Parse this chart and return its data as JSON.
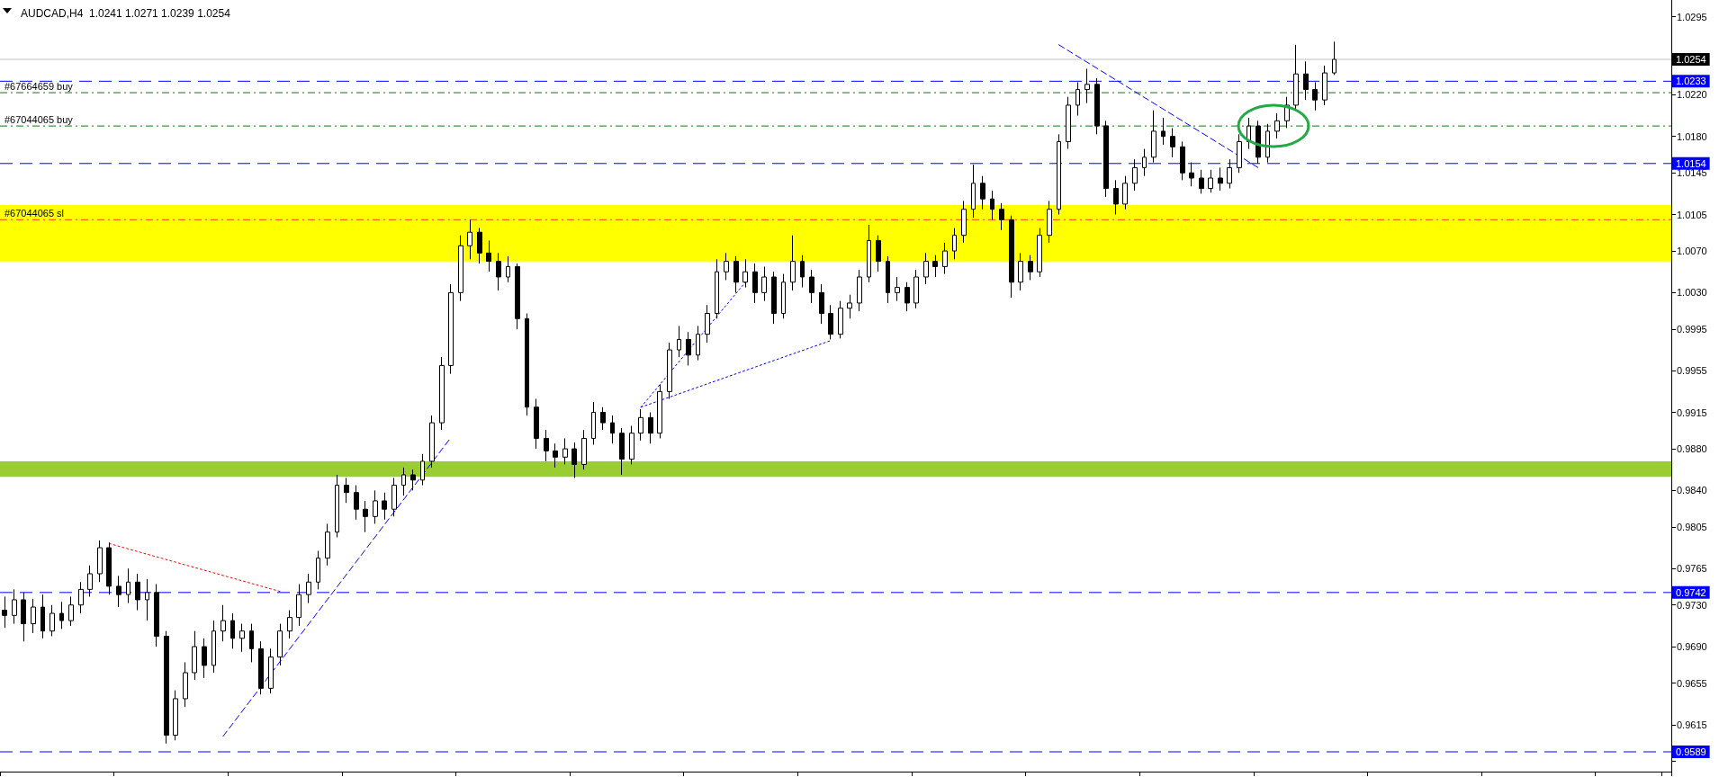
{
  "chart_data": {
    "type": "candlestick",
    "title": "AUDCAD,H4  1.0241 1.0271 1.0239 1.0254",
    "color": "#000000",
    "categories": [
      null,
      null,
      null,
      null,
      null,
      null,
      null,
      null,
      null,
      null,
      null,
      null,
      null,
      null,
      null,
      null,
      null,
      null,
      null,
      null,
      null,
      null,
      null,
      null,
      null,
      null,
      null,
      null,
      null,
      null,
      null,
      null,
      null,
      null,
      null,
      null,
      null,
      null,
      null,
      null,
      null,
      null,
      null,
      null,
      null,
      null,
      null,
      null,
      null,
      null,
      null,
      null,
      null,
      null,
      null,
      null,
      null,
      null,
      null,
      null,
      null,
      null,
      null,
      null,
      null,
      null,
      null,
      null,
      null,
      null,
      null,
      null,
      null,
      null,
      null,
      null,
      null,
      null,
      null,
      null,
      null,
      null,
      null,
      null,
      null,
      null,
      null,
      null,
      null,
      null,
      null,
      null,
      null,
      null,
      null,
      null,
      null,
      null,
      null,
      null,
      null,
      null,
      null,
      null,
      null,
      null,
      null,
      null,
      null,
      null,
      null,
      null,
      null,
      null,
      null,
      null,
      null,
      null,
      null,
      null,
      null,
      null,
      null,
      null,
      null,
      null,
      null,
      null,
      null,
      null,
      null,
      null,
      null,
      null,
      null,
      null,
      null,
      null,
      null,
      null,
      null,
      null,
      null,
      null,
      null,
      null,
      null,
      null,
      null,
      null,
      null,
      null,
      null,
      null,
      null,
      null,
      null,
      null,
      null,
      null,
      null,
      null,
      null,
      null,
      null,
      null,
      null,
      null,
      null,
      null,
      null,
      null,
      null,
      null,
      null,
      null
    ],
    "ohlc": [
      [
        0.9725,
        0.9738,
        0.9708,
        0.972
      ],
      [
        0.972,
        0.9745,
        0.9712,
        0.9735
      ],
      [
        0.9735,
        0.9742,
        0.9695,
        0.9712
      ],
      [
        0.9712,
        0.9736,
        0.9703,
        0.9728
      ],
      [
        0.9728,
        0.974,
        0.9698,
        0.9705
      ],
      [
        0.9705,
        0.973,
        0.97,
        0.9722
      ],
      [
        0.9722,
        0.9733,
        0.9707,
        0.9715
      ],
      [
        0.9715,
        0.9738,
        0.971,
        0.973
      ],
      [
        0.973,
        0.9752,
        0.9722,
        0.9745
      ],
      [
        0.9745,
        0.9768,
        0.9738,
        0.976
      ],
      [
        0.976,
        0.9792,
        0.9752,
        0.9785
      ],
      [
        0.9785,
        0.979,
        0.974,
        0.9748
      ],
      [
        0.9748,
        0.9758,
        0.9728,
        0.974
      ],
      [
        0.974,
        0.9765,
        0.9732,
        0.9752
      ],
      [
        0.9752,
        0.976,
        0.9725,
        0.9735
      ],
      [
        0.9735,
        0.9755,
        0.9715,
        0.9742
      ],
      [
        0.9742,
        0.975,
        0.969,
        0.97
      ],
      [
        0.97,
        0.9705,
        0.9597,
        0.9605
      ],
      [
        0.9605,
        0.9648,
        0.96,
        0.964
      ],
      [
        0.964,
        0.9675,
        0.9632,
        0.9665
      ],
      [
        0.9665,
        0.9705,
        0.9658,
        0.969
      ],
      [
        0.969,
        0.9698,
        0.966,
        0.9672
      ],
      [
        0.9672,
        0.9715,
        0.9665,
        0.9705
      ],
      [
        0.9705,
        0.973,
        0.9695,
        0.9715
      ],
      [
        0.9715,
        0.9722,
        0.9688,
        0.9698
      ],
      [
        0.9698,
        0.9712,
        0.9685,
        0.9705
      ],
      [
        0.9705,
        0.9712,
        0.9675,
        0.9688
      ],
      [
        0.9688,
        0.9695,
        0.9644,
        0.965
      ],
      [
        0.965,
        0.9688,
        0.9645,
        0.968
      ],
      [
        0.968,
        0.9712,
        0.9672,
        0.9705
      ],
      [
        0.9705,
        0.9725,
        0.9698,
        0.9718
      ],
      [
        0.9718,
        0.975,
        0.971,
        0.974
      ],
      [
        0.974,
        0.976,
        0.9732,
        0.9752
      ],
      [
        0.9752,
        0.9782,
        0.9745,
        0.9775
      ],
      [
        0.9775,
        0.9808,
        0.9768,
        0.98
      ],
      [
        0.98,
        0.9855,
        0.9795,
        0.9845
      ],
      [
        0.9845,
        0.9852,
        0.9828,
        0.9838
      ],
      [
        0.9838,
        0.9845,
        0.9812,
        0.9822
      ],
      [
        0.9822,
        0.983,
        0.98,
        0.9815
      ],
      [
        0.9815,
        0.984,
        0.9808,
        0.983
      ],
      [
        0.983,
        0.9838,
        0.9812,
        0.9822
      ],
      [
        0.9822,
        0.9852,
        0.9815,
        0.9845
      ],
      [
        0.9845,
        0.9862,
        0.9835,
        0.9855
      ],
      [
        0.9855,
        0.986,
        0.984,
        0.985
      ],
      [
        0.985,
        0.9875,
        0.9845,
        0.9868
      ],
      [
        0.9868,
        0.9912,
        0.9862,
        0.9905
      ],
      [
        0.9905,
        0.9968,
        0.9898,
        0.996
      ],
      [
        0.996,
        1.0038,
        0.9952,
        1.003
      ],
      [
        1.003,
        1.0085,
        1.0022,
        1.0075
      ],
      [
        1.0075,
        1.01,
        1.0062,
        1.0088
      ],
      [
        1.0088,
        1.0092,
        1.0058,
        1.0068
      ],
      [
        1.0068,
        1.008,
        1.005,
        1.006
      ],
      [
        1.006,
        1.0068,
        1.0032,
        1.0045
      ],
      [
        1.0045,
        1.0065,
        1.004,
        1.0055
      ],
      [
        1.0055,
        1.0058,
        0.9995,
        1.0005
      ],
      [
        1.0005,
        1.001,
        0.9912,
        0.992
      ],
      [
        0.992,
        0.9928,
        0.988,
        0.989
      ],
      [
        0.989,
        0.9898,
        0.9868,
        0.9878
      ],
      [
        0.9878,
        0.9885,
        0.9862,
        0.9872
      ],
      [
        0.9872,
        0.989,
        0.9865,
        0.988
      ],
      [
        0.988,
        0.9886,
        0.9852,
        0.9865
      ],
      [
        0.9865,
        0.9898,
        0.986,
        0.989
      ],
      [
        0.989,
        0.9925,
        0.9884,
        0.9915
      ],
      [
        0.9915,
        0.992,
        0.9898,
        0.9905
      ],
      [
        0.9905,
        0.9912,
        0.9885,
        0.9895
      ],
      [
        0.9895,
        0.99,
        0.9855,
        0.987
      ],
      [
        0.987,
        0.9902,
        0.9865,
        0.9895
      ],
      [
        0.9895,
        0.9918,
        0.9888,
        0.991
      ],
      [
        0.991,
        0.9915,
        0.9885,
        0.9895
      ],
      [
        0.9895,
        0.9942,
        0.989,
        0.9935
      ],
      [
        0.9935,
        0.9982,
        0.9928,
        0.9975
      ],
      [
        0.9975,
        0.9998,
        0.9968,
        0.9985
      ],
      [
        0.9985,
        0.9992,
        0.996,
        0.997
      ],
      [
        0.997,
        0.9998,
        0.9965,
        0.999
      ],
      [
        0.999,
        1.0018,
        0.9982,
        1.001
      ],
      [
        1.001,
        1.0062,
        1.0005,
        1.005
      ],
      [
        1.005,
        1.0068,
        1.0042,
        1.006
      ],
      [
        1.006,
        1.0065,
        1.003,
        1.004
      ],
      [
        1.004,
        1.0062,
        1.0035,
        1.005
      ],
      [
        1.005,
        1.0058,
        1.002,
        1.003
      ],
      [
        1.003,
        1.0055,
        1.0022,
        1.0045
      ],
      [
        1.0045,
        1.005,
        1.0,
        1.001
      ],
      [
        1.001,
        1.0048,
        1.0005,
        1.004
      ],
      [
        1.004,
        1.0085,
        1.0032,
        1.006
      ],
      [
        1.006,
        1.0066,
        1.0035,
        1.0045
      ],
      [
        1.0045,
        1.0052,
        1.002,
        1.003
      ],
      [
        1.003,
        1.0038,
        1.0,
        1.001
      ],
      [
        1.001,
        1.0018,
        0.9985,
        0.999
      ],
      [
        0.999,
        1.0022,
        0.9986,
        1.0015
      ],
      [
        1.0015,
        1.0028,
        1.0005,
        1.002
      ],
      [
        1.002,
        1.0052,
        1.0012,
        1.0045
      ],
      [
        1.0045,
        1.0095,
        1.004,
        1.008
      ],
      [
        1.008,
        1.0085,
        1.005,
        1.006
      ],
      [
        1.006,
        1.0065,
        1.002,
        1.003
      ],
      [
        1.003,
        1.0045,
        1.0022,
        1.0035
      ],
      [
        1.0035,
        1.004,
        1.0012,
        1.002
      ],
      [
        1.002,
        1.0052,
        1.0015,
        1.0045
      ],
      [
        1.0045,
        1.0068,
        1.0038,
        1.006
      ],
      [
        1.006,
        1.0066,
        1.0045,
        1.0055
      ],
      [
        1.0055,
        1.0078,
        1.0048,
        1.007
      ],
      [
        1.007,
        1.0092,
        1.0062,
        1.0085
      ],
      [
        1.0085,
        1.0118,
        1.0078,
        1.011
      ],
      [
        1.011,
        1.0153,
        1.0102,
        1.0135
      ],
      [
        1.0135,
        1.0142,
        1.011,
        1.012
      ],
      [
        1.012,
        1.0128,
        1.01,
        1.011
      ],
      [
        1.011,
        1.0116,
        1.009,
        1.01
      ],
      [
        1.01,
        1.0104,
        1.0025,
        1.004
      ],
      [
        1.004,
        1.0068,
        1.0032,
        1.006
      ],
      [
        1.006,
        1.0066,
        1.0042,
        1.005
      ],
      [
        1.005,
        1.0092,
        1.0045,
        1.0085
      ],
      [
        1.0085,
        1.0118,
        1.0078,
        1.011
      ],
      [
        1.011,
        1.0182,
        1.0105,
        1.0175
      ],
      [
        1.0175,
        1.0218,
        1.0168,
        1.021
      ],
      [
        1.021,
        1.0232,
        1.02,
        1.0225
      ],
      [
        1.0225,
        1.0245,
        1.0212,
        1.023
      ],
      [
        1.023,
        1.0236,
        1.0182,
        1.019
      ],
      [
        1.019,
        1.0195,
        1.0122,
        1.013
      ],
      [
        1.013,
        1.0138,
        1.0105,
        1.0115
      ],
      [
        1.0115,
        1.0142,
        1.011,
        1.0135
      ],
      [
        1.0135,
        1.0158,
        1.0128,
        1.015
      ],
      [
        1.015,
        1.0168,
        1.0142,
        1.016
      ],
      [
        1.016,
        1.0205,
        1.0155,
        1.0185
      ],
      [
        1.0185,
        1.0198,
        1.0172,
        1.018
      ],
      [
        1.018,
        1.0188,
        1.016,
        1.017
      ],
      [
        1.017,
        1.0175,
        1.0138,
        1.0145
      ],
      [
        1.0145,
        1.0155,
        1.0132,
        1.014
      ],
      [
        1.014,
        1.0148,
        1.0125,
        1.013
      ],
      [
        1.013,
        1.0148,
        1.0126,
        1.014
      ],
      [
        1.014,
        1.015,
        1.0128,
        1.0135
      ],
      [
        1.0135,
        1.0158,
        1.013,
        1.015
      ],
      [
        1.015,
        1.0182,
        1.0145,
        1.0175
      ],
      [
        1.0175,
        1.0198,
        1.0168,
        1.019
      ],
      [
        1.019,
        1.0195,
        1.0154,
        1.016
      ],
      [
        1.016,
        1.0192,
        1.0155,
        1.0185
      ],
      [
        1.0185,
        1.0202,
        1.0178,
        1.0195
      ],
      [
        1.0195,
        1.0218,
        1.0188,
        1.021
      ],
      [
        1.021,
        1.0268,
        1.0205,
        1.024
      ],
      [
        1.024,
        1.0252,
        1.0215,
        1.0225
      ],
      [
        1.0225,
        1.0232,
        1.0205,
        1.0215
      ],
      [
        1.0215,
        1.0248,
        1.021,
        1.0241
      ],
      [
        1.0241,
        1.0271,
        1.0239,
        1.0254
      ],
      null,
      null,
      null,
      null,
      null,
      null,
      null,
      null,
      null,
      null,
      null,
      null,
      null,
      null,
      null,
      null,
      null,
      null,
      null,
      null,
      null,
      null,
      null,
      null,
      null,
      null,
      null,
      null,
      null,
      null,
      null,
      null,
      null,
      null,
      null
    ],
    "series": [
      {
        "type": "line",
        "color": "#0000ff",
        "line_style": "dashed",
        "values": [
          null,
          null,
          null,
          null,
          null,
          null,
          null,
          null,
          null,
          null,
          null,
          null,
          null,
          null,
          null,
          null,
          null,
          null,
          null,
          null,
          null,
          null,
          null,
          0.9604,
          null,
          null,
          null,
          null,
          null,
          null,
          null,
          null,
          null,
          null,
          null,
          null,
          null,
          null,
          null,
          null,
          null,
          null,
          null,
          null,
          null,
          null,
          null,
          0.9891,
          null,
          null,
          null,
          null,
          null,
          null,
          null,
          null,
          null,
          null,
          null,
          null,
          null,
          null,
          null,
          null,
          null,
          null,
          null,
          null,
          null,
          null,
          null,
          null,
          null,
          null,
          null,
          null,
          null,
          null,
          null,
          null,
          null,
          null,
          null,
          null,
          null,
          null,
          null,
          null,
          null,
          null,
          null,
          null,
          null,
          null,
          null,
          null,
          null,
          null,
          null,
          null,
          null,
          null,
          null,
          null,
          null,
          null,
          null,
          null,
          null,
          null,
          null,
          null,
          null,
          null,
          null,
          null,
          null,
          null,
          null,
          null,
          null,
          null,
          null,
          null,
          null,
          null,
          null,
          null,
          null,
          null,
          null,
          null,
          null,
          null,
          null,
          null,
          null,
          null,
          null,
          null,
          null,
          null,
          null,
          null,
          null,
          null,
          null,
          null,
          null,
          null,
          null,
          null,
          null,
          null,
          null,
          null,
          null,
          null,
          null,
          null,
          null,
          null,
          null,
          null,
          null,
          null,
          null,
          null,
          null,
          null,
          null,
          null,
          null,
          null,
          null,
          null
        ]
      },
      {
        "type": "line",
        "color": "#0000ff",
        "line_style": "dashed",
        "values": [
          null,
          null,
          null,
          null,
          null,
          null,
          null,
          null,
          null,
          null,
          null,
          null,
          null,
          null,
          null,
          null,
          null,
          null,
          null,
          null,
          null,
          null,
          null,
          null,
          null,
          null,
          null,
          null,
          null,
          null,
          null,
          null,
          null,
          null,
          null,
          null,
          null,
          null,
          null,
          null,
          null,
          null,
          null,
          null,
          null,
          null,
          null,
          null,
          null,
          null,
          null,
          null,
          null,
          null,
          null,
          null,
          null,
          null,
          null,
          null,
          null,
          null,
          null,
          null,
          null,
          null,
          null,
          null,
          null,
          null,
          null,
          null,
          null,
          null,
          null,
          null,
          null,
          null,
          null,
          null,
          null,
          null,
          null,
          null,
          null,
          null,
          null,
          null,
          null,
          null,
          null,
          null,
          null,
          null,
          null,
          null,
          null,
          null,
          null,
          null,
          null,
          null,
          null,
          null,
          null,
          null,
          null,
          null,
          null,
          null,
          null,
          1.0268,
          null,
          null,
          null,
          null,
          null,
          null,
          null,
          null,
          null,
          null,
          null,
          null,
          null,
          null,
          null,
          null,
          null,
          null,
          null,
          null,
          1.015,
          null,
          null,
          null,
          null,
          null,
          null,
          null,
          null,
          null,
          null,
          null,
          null,
          null,
          null,
          null,
          null,
          null,
          null,
          null,
          null,
          null,
          null,
          null,
          null,
          null,
          null,
          null,
          null,
          null,
          null,
          null,
          null,
          null,
          null,
          null,
          null,
          null,
          null,
          null,
          null,
          null,
          null,
          null
        ]
      },
      {
        "type": "line",
        "color": "#0000ff",
        "line_style": "dotted",
        "values": [
          null,
          null,
          null,
          null,
          null,
          null,
          null,
          null,
          null,
          null,
          null,
          null,
          null,
          null,
          null,
          null,
          null,
          null,
          null,
          null,
          null,
          null,
          null,
          null,
          null,
          null,
          null,
          null,
          null,
          null,
          null,
          null,
          null,
          null,
          null,
          null,
          null,
          null,
          null,
          null,
          null,
          null,
          null,
          null,
          null,
          null,
          null,
          null,
          null,
          null,
          null,
          null,
          null,
          null,
          null,
          null,
          null,
          null,
          null,
          null,
          null,
          null,
          null,
          null,
          null,
          null,
          null,
          0.992,
          null,
          null,
          null,
          null,
          null,
          null,
          null,
          null,
          null,
          null,
          null,
          null,
          null,
          null,
          null,
          null,
          null,
          null,
          null,
          0.9984,
          null,
          null,
          null,
          null,
          null,
          null,
          null,
          null,
          null,
          null,
          null,
          null,
          null,
          null,
          null,
          null,
          null,
          null,
          null,
          null,
          null,
          null,
          null,
          null,
          null,
          null,
          null,
          null,
          null,
          null,
          null,
          null,
          null,
          null,
          null,
          null,
          null,
          null,
          null,
          null,
          null,
          null,
          null,
          null,
          null,
          null,
          null,
          null,
          null,
          null,
          null,
          null,
          null,
          null,
          null,
          null,
          null,
          null,
          null,
          null,
          null,
          null,
          null,
          null,
          null,
          null,
          null,
          null,
          null,
          null,
          null,
          null,
          null,
          null,
          null,
          null,
          null,
          null,
          null,
          null,
          null,
          null,
          null,
          null,
          null,
          null,
          null,
          null
        ]
      },
      {
        "type": "line",
        "color": "#0000ff",
        "line_style": "dotted",
        "values": [
          null,
          null,
          null,
          null,
          null,
          null,
          null,
          null,
          null,
          null,
          null,
          null,
          null,
          null,
          null,
          null,
          null,
          null,
          null,
          null,
          null,
          null,
          null,
          null,
          null,
          null,
          null,
          null,
          null,
          null,
          null,
          null,
          null,
          null,
          null,
          null,
          null,
          null,
          null,
          null,
          null,
          null,
          null,
          null,
          null,
          null,
          null,
          null,
          null,
          null,
          null,
          null,
          null,
          null,
          null,
          null,
          null,
          null,
          null,
          null,
          null,
          null,
          null,
          null,
          null,
          null,
          null,
          0.992,
          null,
          null,
          null,
          null,
          null,
          null,
          null,
          null,
          null,
          null,
          1.004,
          null,
          null,
          null,
          null,
          null,
          null,
          null,
          null,
          null,
          null,
          null,
          null,
          null,
          null,
          null,
          null,
          null,
          null,
          null,
          null,
          null,
          null,
          null,
          null,
          null,
          null,
          null,
          null,
          null,
          null,
          null,
          null,
          null,
          null,
          null,
          null,
          null,
          null,
          null,
          null,
          null,
          null,
          null,
          null,
          null,
          null,
          null,
          null,
          null,
          null,
          null,
          null,
          null,
          null,
          null,
          null,
          null,
          null,
          null,
          null,
          null,
          null,
          null,
          null,
          null,
          null,
          null,
          null,
          null,
          null,
          null,
          null,
          null,
          null,
          null,
          null,
          null,
          null,
          null,
          null,
          null,
          null,
          null,
          null,
          null,
          null,
          null,
          null,
          null,
          null,
          null,
          null,
          null,
          null,
          null,
          null,
          null
        ]
      },
      {
        "type": "line",
        "color": "#ff0000",
        "line_style": "dotted",
        "values": [
          null,
          null,
          null,
          null,
          null,
          null,
          null,
          null,
          null,
          null,
          null,
          0.9789,
          null,
          null,
          null,
          null,
          null,
          null,
          null,
          null,
          null,
          null,
          null,
          null,
          null,
          null,
          null,
          null,
          null,
          0.9743,
          null,
          null,
          null,
          null,
          null,
          null,
          null,
          null,
          null,
          null,
          null,
          null,
          null,
          null,
          null,
          null,
          null,
          null,
          null,
          null,
          null,
          null,
          null,
          null,
          null,
          null,
          null,
          null,
          null,
          null,
          null,
          null,
          null,
          null,
          null,
          null,
          null,
          null,
          null,
          null,
          null,
          null,
          null,
          null,
          null,
          null,
          null,
          null,
          null,
          null,
          null,
          null,
          null,
          null,
          null,
          null,
          null,
          null,
          null,
          null,
          null,
          null,
          null,
          null,
          null,
          null,
          null,
          null,
          null,
          null,
          null,
          null,
          null,
          null,
          null,
          null,
          null,
          null,
          null,
          null,
          null,
          null,
          null,
          null,
          null,
          null,
          null,
          null,
          null,
          null,
          null,
          null,
          null,
          null,
          null,
          null,
          null,
          null,
          null,
          null,
          null,
          null,
          null,
          null,
          null,
          null,
          null,
          null,
          null,
          null,
          null,
          null,
          null,
          null,
          null,
          null,
          null,
          null,
          null,
          null,
          null,
          null,
          null,
          null,
          null,
          null,
          null,
          null,
          null,
          null,
          null,
          null,
          null,
          null,
          null,
          null,
          null,
          null,
          null,
          null,
          null,
          null,
          null,
          null,
          null,
          null
        ]
      }
    ],
    "ylim": [
      0.957,
      1.0311
    ],
    "yticks": [
      1.0295,
      {
        "value": 1.022,
        "label": "1.0220"
      },
      {
        "value": 1.018,
        "label": "1.0180"
      },
      1.0145,
      1.0105,
      {
        "value": 1.007,
        "label": "1.0070"
      },
      {
        "value": 1.003,
        "label": "1.0030"
      },
      0.9995,
      0.9955,
      0.9915,
      {
        "value": 0.988,
        "label": "0.9880"
      },
      {
        "value": 0.984,
        "label": "0.9840"
      },
      0.9805,
      0.9765,
      {
        "value": 0.973,
        "label": "0.9730"
      },
      {
        "value": 0.969,
        "label": "0.9690"
      },
      0.9655,
      0.9615,
      {
        "value": 0.958,
        "label": null
      }
    ],
    "ref_lines": [
      {
        "axis": "y",
        "value": 1.0254,
        "label": "1.0254",
        "color": "#c0c0c0",
        "line_style": "solid"
      },
      {
        "axis": "y",
        "value": 1.0233,
        "label": "1.0233",
        "color": "#0000ff",
        "line_style": "dashed"
      },
      {
        "axis": "y",
        "value": 1.0154,
        "label": "1.0154",
        "color": "#0000ff",
        "line_style": "dashed"
      },
      {
        "axis": "y",
        "value": 0.9742,
        "label": "0.9742",
        "color": "#0000ff",
        "line_style": "dashed"
      },
      {
        "axis": "y",
        "value": 0.9589,
        "label": "0.9589",
        "color": "#0000ff",
        "line_style": "dashed"
      },
      {
        "axis": "y",
        "value": 1.0222,
        "label": "#67664659 buy",
        "color": "#008000",
        "line_style": "dashdot"
      },
      {
        "axis": "y",
        "value": 1.019,
        "label": "#67044065 buy",
        "color": "#008000",
        "line_style": "dashdot"
      },
      {
        "axis": "y",
        "value": 1.01,
        "label": "#67044065 sl",
        "color": "#ff4500",
        "line_style": "dashdot"
      }
    ],
    "bands": [
      {
        "axis": "y",
        "from": 1.006,
        "to": 1.0114,
        "color": "#ffff00"
      },
      {
        "axis": "y",
        "from": 0.9853,
        "to": 0.9868,
        "color": "#9acd32"
      }
    ],
    "grid": false,
    "tick_labels": "y"
  }
}
